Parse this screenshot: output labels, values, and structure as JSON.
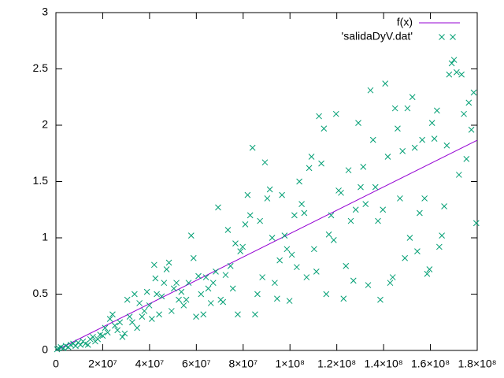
{
  "chart_data": {
    "type": "scatter",
    "xlim": [
      0,
      180000000
    ],
    "ylim": [
      0,
      3
    ],
    "xticks": [
      0,
      {
        "value": 20000000,
        "label": "2×10⁷"
      },
      {
        "value": 40000000,
        "label": "4×10⁷"
      },
      {
        "value": 60000000,
        "label": "6×10⁷"
      },
      {
        "value": 80000000,
        "label": "8×10⁷"
      },
      {
        "value": 100000000,
        "label": "1×10⁸"
      },
      {
        "value": 120000000,
        "label": "1.2×10⁸"
      },
      {
        "value": 140000000,
        "label": "1.4×10⁸"
      },
      {
        "value": 160000000,
        "label": "1.6×10⁸"
      },
      {
        "value": 180000000,
        "label": "1.8×10⁸"
      }
    ],
    "yticks": [
      0,
      0.5,
      1,
      1.5,
      2,
      2.5,
      3
    ],
    "legend": "top-right",
    "series": [
      {
        "name": "f(x)",
        "style": "line",
        "color": "#9400d3",
        "x": [
          0,
          180000000
        ],
        "values": [
          0,
          1.867
        ]
      },
      {
        "name": "'salidaDyV.dat'",
        "style": "points",
        "color": "#009e73",
        "x": [
          500000.0,
          1100000.0,
          2100000.0,
          3200000.0,
          4200000.0,
          5300000.0,
          6300000.0,
          7400000.0,
          8400000.0,
          9500000.0,
          10500000.0,
          11600000.0,
          12600000.0,
          13700000.0,
          14700000.0,
          15800000.0,
          16800000.0,
          17900000.0,
          18900000.0,
          20000000.0,
          21000000.0,
          22100000.0,
          23100000.0,
          24200000.0,
          25200000.0,
          26300000.0,
          27300000.0,
          28400000.0,
          29400000.0,
          30500000.0,
          31500000.0,
          32600000.0,
          33600000.0,
          34700000.0,
          35700000.0,
          36800000.0,
          37800000.0,
          38900000.0,
          39900000.0,
          41000000.0,
          42000000.0,
          42500000.0,
          43100000.0,
          44100000.0,
          45200000.0,
          46200000.0,
          47300000.0,
          48300000.0,
          49400000.0,
          50400000.0,
          51500000.0,
          52500000.0,
          53600000.0,
          54600000.0,
          55700000.0,
          56700000.0,
          57800000.0,
          58800000.0,
          59900000.0,
          60900000.0,
          62000000.0,
          63000000.0,
          64100000.0,
          65100000.0,
          66200000.0,
          67200000.0,
          68300000.0,
          69300000.0,
          70400000.0,
          71400000.0,
          72500000.0,
          73500000.0,
          74600000.0,
          75600000.0,
          76700000.0,
          77700000.0,
          78800000.0,
          79800000.0,
          80900000.0,
          81900000.0,
          83000000.0,
          84000000.0,
          85100000.0,
          86100000.0,
          87200000.0,
          88200000.0,
          89300000.0,
          90300000.0,
          91400000.0,
          92400000.0,
          93500000.0,
          94500000.0,
          95600000.0,
          96600000.0,
          97700000.0,
          98700000.0,
          99800000.0,
          100800000.0,
          101900000.0,
          102900000.0,
          104000000.0,
          105000000.0,
          106100000.0,
          107100000.0,
          108200000.0,
          109200000.0,
          110300000.0,
          111300000.0,
          112400000.0,
          113400000.0,
          114500000.0,
          115500000.0,
          116600000.0,
          117600000.0,
          118700000.0,
          119700000.0,
          120800000.0,
          121800000.0,
          122900000.0,
          123900000.0,
          125000000.0,
          126000000.0,
          127100000.0,
          128100000.0,
          129200000.0,
          130200000.0,
          131300000.0,
          132300000.0,
          133400000.0,
          134400000.0,
          135500000.0,
          136500000.0,
          137600000.0,
          138600000.0,
          139700000.0,
          140700000.0,
          141800000.0,
          142800000.0,
          143900000.0,
          144900000.0,
          146000000.0,
          147000000.0,
          148100000.0,
          149100000.0,
          150200000.0,
          151200000.0,
          152300000.0,
          153300000.0,
          154400000.0,
          155400000.0,
          156500000.0,
          157500000.0,
          158600000.0,
          159600000.0,
          160700000.0,
          161700000.0,
          162800000.0,
          163800000.0,
          164900000.0,
          165900000.0,
          167000000.0,
          168000000.0,
          169100000.0,
          170100000.0,
          171200000.0,
          172200000.0,
          173300000.0,
          174300000.0,
          175400000.0,
          176400000.0,
          177500000.0,
          178500000.0,
          179600000.0
        ],
        "values": [
          0.01,
          0.02,
          0.03,
          0.02,
          0.04,
          0.03,
          0.05,
          0.06,
          0.04,
          0.07,
          0.05,
          0.08,
          0.06,
          0.05,
          0.1,
          0.12,
          0.08,
          0.1,
          0.14,
          0.13,
          0.2,
          0.16,
          0.28,
          0.32,
          0.22,
          0.18,
          0.25,
          0.12,
          0.15,
          0.45,
          0.3,
          0.25,
          0.5,
          0.2,
          0.42,
          0.3,
          0.35,
          0.52,
          0.4,
          0.28,
          0.76,
          0.64,
          0.5,
          0.32,
          0.48,
          0.6,
          0.72,
          0.78,
          0.35,
          0.55,
          0.6,
          0.45,
          0.52,
          0.4,
          0.45,
          0.6,
          1.02,
          0.82,
          0.3,
          0.66,
          0.5,
          0.32,
          0.65,
          0.55,
          0.42,
          0.6,
          0.7,
          1.27,
          0.45,
          0.43,
          0.67,
          1.07,
          0.75,
          0.55,
          0.95,
          0.32,
          0.88,
          0.92,
          1.12,
          1.38,
          1.2,
          1.8,
          0.32,
          0.5,
          1.15,
          0.65,
          1.67,
          1.35,
          1.43,
          1.0,
          0.6,
          0.46,
          0.8,
          1.38,
          1.02,
          0.9,
          0.44,
          0.85,
          1.2,
          0.74,
          1.5,
          1.3,
          1.22,
          0.65,
          1.62,
          1.72,
          0.9,
          0.7,
          2.08,
          1.66,
          1.97,
          0.5,
          1.03,
          1.2,
          0.98,
          2.1,
          1.42,
          1.4,
          0.46,
          0.75,
          1.6,
          1.15,
          0.62,
          1.25,
          2.02,
          1.45,
          1.63,
          1.3,
          0.58,
          2.31,
          1.87,
          1.45,
          1.15,
          0.45,
          1.25,
          2.37,
          1.72,
          0.6,
          0.65,
          2.15,
          1.97,
          1.35,
          1.77,
          0.82,
          2.15,
          1.0,
          2.25,
          1.8,
          0.88,
          1.22,
          1.87,
          1.35,
          0.68,
          0.72,
          2.02,
          1.88,
          2.13,
          0.92,
          1.02,
          1.28,
          1.82,
          2.45,
          2.55,
          2.58,
          2.47,
          1.56,
          2.45,
          2.1,
          1.7,
          2.2,
          1.96,
          2.29,
          1.13
        ]
      }
    ]
  }
}
